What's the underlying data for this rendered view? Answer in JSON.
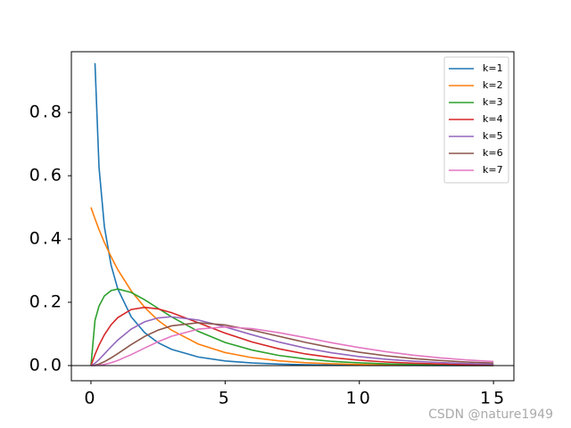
{
  "chart_data": {
    "type": "line",
    "x": [
      0,
      0.15,
      0.3,
      0.5,
      0.75,
      1,
      1.5,
      2,
      2.5,
      3,
      4,
      5,
      6,
      7,
      8,
      9,
      10,
      11,
      12,
      13,
      14,
      15
    ],
    "series": [
      {
        "name": "k=1",
        "color": "#1f77b4",
        "values": [
          null,
          0.956,
          0.627,
          0.439,
          0.317,
          0.242,
          0.154,
          0.104,
          0.0723,
          0.0514,
          0.027,
          0.0146,
          0.0081,
          0.0046,
          0.0026,
          0.0015,
          0.0009,
          0.0005,
          0.0003,
          0.0002,
          0.0001,
          0.0001
        ]
      },
      {
        "name": "k=2",
        "color": "#ff7f0e",
        "values": [
          0.5,
          0.464,
          0.43,
          0.389,
          0.344,
          0.303,
          0.236,
          0.184,
          0.143,
          0.112,
          0.068,
          0.041,
          0.025,
          0.015,
          0.009,
          0.0056,
          0.0034,
          0.002,
          0.0012,
          0.0008,
          0.0005,
          0.0003
        ]
      },
      {
        "name": "k=3",
        "color": "#2ca02c",
        "values": [
          0,
          0.143,
          0.188,
          0.22,
          0.237,
          0.242,
          0.231,
          0.208,
          0.181,
          0.154,
          0.108,
          0.073,
          0.049,
          0.032,
          0.021,
          0.013,
          0.0085,
          0.0054,
          0.0034,
          0.0022,
          0.0014,
          0.0009
        ]
      },
      {
        "name": "k=4",
        "color": "#d62728",
        "values": [
          0,
          0.0348,
          0.0646,
          0.0974,
          0.1289,
          0.1516,
          0.1772,
          0.1839,
          0.1791,
          0.1673,
          0.1353,
          0.1026,
          0.0747,
          0.0529,
          0.0366,
          0.025,
          0.0168,
          0.0112,
          0.0074,
          0.0049,
          0.0032,
          0.0021
        ]
      },
      {
        "name": "k=5",
        "color": "#9467bd",
        "values": [
          0,
          0.0072,
          0.0188,
          0.0366,
          0.0594,
          0.0807,
          0.1154,
          0.1384,
          0.1506,
          0.1542,
          0.1439,
          0.1221,
          0.0973,
          0.0744,
          0.0551,
          0.0399,
          0.0283,
          0.0198,
          0.0137,
          0.0094,
          0.0064,
          0.0043
        ]
      },
      {
        "name": "k=6",
        "color": "#8c564b",
        "values": [
          0,
          0.0013,
          0.0048,
          0.0122,
          0.0242,
          0.0379,
          0.0664,
          0.092,
          0.1119,
          0.1255,
          0.1353,
          0.1283,
          0.112,
          0.0925,
          0.0732,
          0.0562,
          0.0421,
          0.0309,
          0.0223,
          0.0158,
          0.0112,
          0.0078
        ]
      },
      {
        "name": "k=7",
        "color": "#e377c2",
        "values": [
          0,
          0.0002,
          0.0011,
          0.0037,
          0.0089,
          0.0161,
          0.0346,
          0.0554,
          0.0753,
          0.0925,
          0.1152,
          0.1221,
          0.1168,
          0.1041,
          0.0881,
          0.0717,
          0.0567,
          0.0437,
          0.0329,
          0.0243,
          0.0178,
          0.0128
        ]
      }
    ],
    "xlim": [
      -0.73,
      15.76
    ],
    "xticks": [
      0,
      5,
      10,
      15
    ],
    "ylim": [
      -0.048,
      0.992
    ],
    "yticks": [
      {
        "value": 0,
        "label": "0.0"
      },
      {
        "value": 0.2,
        "label": "0.2"
      },
      {
        "value": 0.4,
        "label": "0.4"
      },
      {
        "value": 0.6,
        "label": "0.6"
      },
      {
        "value": 0.8,
        "label": "0.8"
      }
    ],
    "axhline": 0,
    "legend": "upper right",
    "watermark": "CSDN @nature1949"
  }
}
